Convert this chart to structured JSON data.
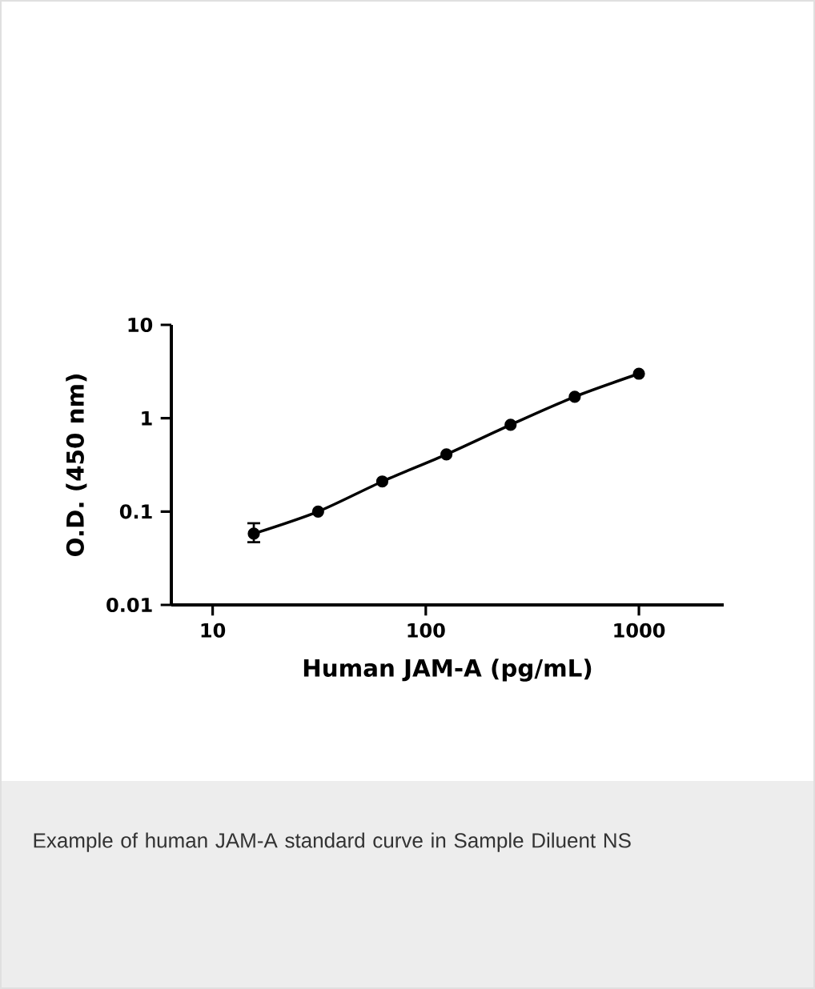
{
  "chart_data": {
    "type": "line",
    "xlabel": "Human JAM-A (pg/mL)",
    "ylabel": "O.D. (450 nm)",
    "x": [
      15.6,
      31.25,
      62.5,
      125,
      250,
      500,
      1000
    ],
    "series": [
      {
        "color": "#000000",
        "values": [
          0.058,
          0.1,
          0.21,
          0.41,
          0.85,
          1.7,
          3.0
        ],
        "errors": [
          [
            0.047,
            0.075
          ],
          null,
          null,
          null,
          null,
          null,
          null
        ]
      }
    ],
    "log": "xy",
    "xlim": [
      6.4,
      2500
    ],
    "ylim": [
      0.01,
      10
    ],
    "xticks": [
      10,
      100,
      1000
    ],
    "yticks": [
      0.01,
      0.1,
      1,
      10
    ],
    "marker": "circle",
    "line_style": "solid",
    "annotations": [
      "Example of human JAM-A standard curve in Sample Diluent NS"
    ]
  }
}
